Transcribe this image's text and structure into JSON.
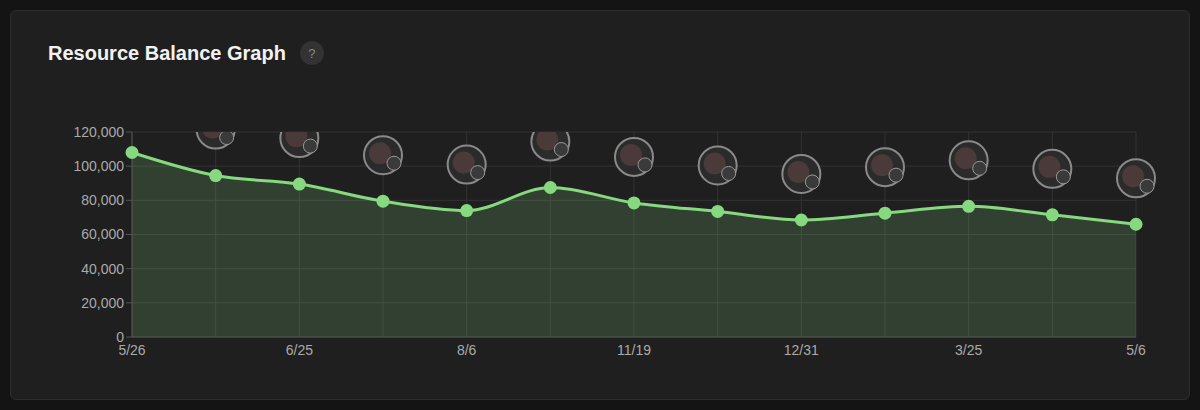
{
  "chart_data": {
    "type": "area",
    "title": "Resource Balance Graph",
    "annotations": [
      "?"
    ],
    "categories": [
      "5/26",
      null,
      "6/25",
      null,
      "8/6",
      null,
      "11/19",
      null,
      "12/31",
      null,
      "3/25",
      null,
      "5/6"
    ],
    "values": [
      108000,
      94500,
      89500,
      79500,
      74000,
      87500,
      78500,
      73500,
      68500,
      72500,
      76500,
      71500,
      66000
    ],
    "color": "#86d97f",
    "ylim": [
      0,
      120000
    ],
    "yticks": [
      0,
      {
        "value": 20000,
        "label": "20,000"
      },
      {
        "value": 40000,
        "label": "40,000"
      },
      {
        "value": 60000,
        "label": "60,000"
      },
      {
        "value": 80000,
        "label": "80,000"
      },
      {
        "value": 100000,
        "label": "100,000"
      },
      {
        "value": 120000,
        "label": "120,000"
      }
    ],
    "grid": true,
    "marker": "circle"
  }
}
